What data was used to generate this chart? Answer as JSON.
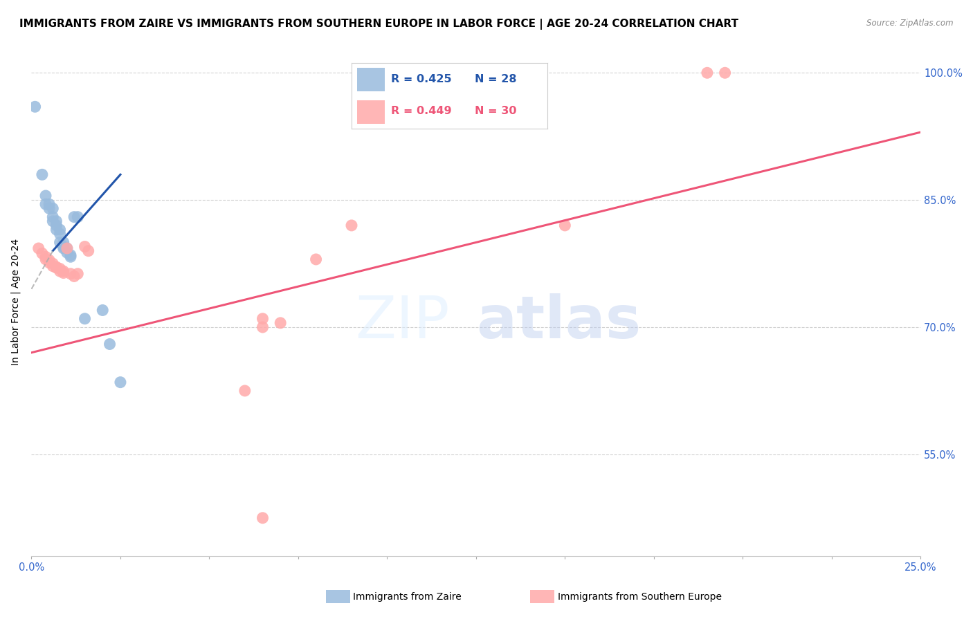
{
  "title": "IMMIGRANTS FROM ZAIRE VS IMMIGRANTS FROM SOUTHERN EUROPE IN LABOR FORCE | AGE 20-24 CORRELATION CHART",
  "source": "Source: ZipAtlas.com",
  "ylabel": "In Labor Force | Age 20-24",
  "ytick_labels_right": [
    "100.0%",
    "85.0%",
    "70.0%",
    "55.0%"
  ],
  "ytick_values": [
    1.0,
    0.85,
    0.7,
    0.55
  ],
  "xmin": 0.0,
  "xmax": 0.25,
  "ymin": 0.43,
  "ymax": 1.03,
  "legend_blue_r": "0.425",
  "legend_blue_n": "28",
  "legend_pink_r": "0.449",
  "legend_pink_n": "30",
  "legend_label_blue": "Immigrants from Zaire",
  "legend_label_pink": "Immigrants from Southern Europe",
  "blue_color": "#99BBDD",
  "pink_color": "#FFAAAA",
  "blue_line_color": "#2255AA",
  "pink_line_color": "#EE5577",
  "watermark_zip": "ZIP",
  "watermark_atlas": "atlas",
  "blue_dots": [
    [
      0.001,
      0.96
    ],
    [
      0.003,
      0.88
    ],
    [
      0.004,
      0.855
    ],
    [
      0.004,
      0.845
    ],
    [
      0.005,
      0.845
    ],
    [
      0.005,
      0.84
    ],
    [
      0.006,
      0.84
    ],
    [
      0.006,
      0.83
    ],
    [
      0.006,
      0.825
    ],
    [
      0.007,
      0.825
    ],
    [
      0.007,
      0.82
    ],
    [
      0.007,
      0.815
    ],
    [
      0.008,
      0.815
    ],
    [
      0.008,
      0.81
    ],
    [
      0.008,
      0.8
    ],
    [
      0.009,
      0.8
    ],
    [
      0.009,
      0.795
    ],
    [
      0.009,
      0.793
    ],
    [
      0.01,
      0.793
    ],
    [
      0.01,
      0.788
    ],
    [
      0.011,
      0.785
    ],
    [
      0.011,
      0.783
    ],
    [
      0.012,
      0.83
    ],
    [
      0.013,
      0.83
    ],
    [
      0.015,
      0.71
    ],
    [
      0.02,
      0.72
    ],
    [
      0.022,
      0.68
    ],
    [
      0.025,
      0.635
    ]
  ],
  "pink_dots": [
    [
      0.002,
      0.793
    ],
    [
      0.003,
      0.787
    ],
    [
      0.004,
      0.783
    ],
    [
      0.004,
      0.78
    ],
    [
      0.005,
      0.779
    ],
    [
      0.005,
      0.776
    ],
    [
      0.006,
      0.775
    ],
    [
      0.006,
      0.772
    ],
    [
      0.007,
      0.771
    ],
    [
      0.007,
      0.77
    ],
    [
      0.008,
      0.769
    ],
    [
      0.008,
      0.766
    ],
    [
      0.009,
      0.766
    ],
    [
      0.009,
      0.764
    ],
    [
      0.01,
      0.793
    ],
    [
      0.011,
      0.763
    ],
    [
      0.012,
      0.76
    ],
    [
      0.013,
      0.763
    ],
    [
      0.015,
      0.795
    ],
    [
      0.016,
      0.79
    ],
    [
      0.06,
      0.625
    ],
    [
      0.065,
      0.7
    ],
    [
      0.065,
      0.71
    ],
    [
      0.07,
      0.705
    ],
    [
      0.08,
      0.78
    ],
    [
      0.09,
      0.82
    ],
    [
      0.15,
      0.82
    ],
    [
      0.19,
      1.0
    ],
    [
      0.195,
      1.0
    ],
    [
      0.065,
      0.475
    ]
  ],
  "blue_line_solid": [
    [
      0.006,
      0.79
    ],
    [
      0.025,
      0.88
    ]
  ],
  "blue_line_dashed": [
    [
      0.0,
      0.745
    ],
    [
      0.006,
      0.79
    ]
  ],
  "pink_line": [
    [
      0.0,
      0.67
    ],
    [
      0.25,
      0.93
    ]
  ],
  "title_fontsize": 11,
  "axis_label_fontsize": 10,
  "tick_fontsize": 10.5,
  "legend_fontsize": 12
}
